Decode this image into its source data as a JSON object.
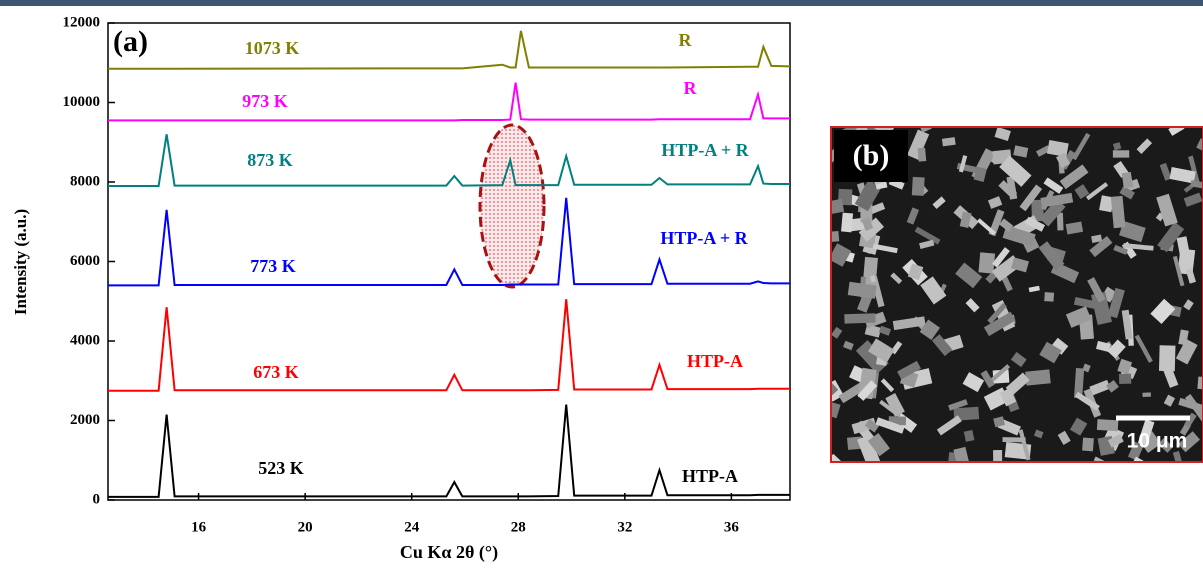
{
  "chart_data": {
    "type": "line",
    "panel_label": "(a)",
    "x_label": "Cu Kα 2θ (°)",
    "y_label": "Intensity (a.u.)",
    "xlim": [
      12.6,
      38.2
    ],
    "ylim": [
      0,
      12000
    ],
    "xticks": [
      16,
      20,
      24,
      28,
      32,
      36
    ],
    "yticks": [
      0,
      2000,
      4000,
      6000,
      8000,
      10000,
      12000
    ],
    "x": [
      12.6,
      14.5,
      14.8,
      15.1,
      25.3,
      25.6,
      25.9,
      27.4,
      27.7,
      27.9,
      28.1,
      28.4,
      29.5,
      29.8,
      30.1,
      33.0,
      33.3,
      33.6,
      36.7,
      37.0,
      37.2,
      37.5,
      38.2
    ],
    "series": [
      {
        "name": "523 K",
        "phase": "HTP-A",
        "color": "#000000",
        "values": [
          80,
          80,
          2150,
          90,
          90,
          450,
          90,
          90,
          90,
          90,
          90,
          90,
          100,
          2400,
          110,
          110,
          750,
          120,
          120,
          130,
          130,
          130,
          130
        ]
      },
      {
        "name": "673 K",
        "phase": "HTP-A",
        "color": "#ff0000",
        "values": [
          2750,
          2750,
          4850,
          2760,
          2760,
          3150,
          2760,
          2760,
          2760,
          2760,
          2760,
          2760,
          2770,
          5050,
          2780,
          2780,
          3400,
          2790,
          2790,
          2800,
          2800,
          2800,
          2800
        ]
      },
      {
        "name": "773 K",
        "phase": "HTP-A + R",
        "color": "#0000ff",
        "values": [
          5400,
          5400,
          7300,
          5410,
          5410,
          5800,
          5410,
          5410,
          5420,
          5420,
          5420,
          5420,
          5420,
          7600,
          5430,
          5430,
          6050,
          5440,
          5440,
          5500,
          5460,
          5450,
          5450
        ]
      },
      {
        "name": "873 K",
        "phase": "HTP-A + R",
        "color": "#008080",
        "values": [
          7900,
          7900,
          9200,
          7910,
          7910,
          8150,
          7910,
          7920,
          8550,
          7920,
          7920,
          7920,
          7920,
          8650,
          7930,
          7930,
          8100,
          7940,
          7940,
          8400,
          7960,
          7950,
          7950
        ]
      },
      {
        "name": "973 K",
        "phase": "R",
        "color": "#ff00ff",
        "values": [
          9550,
          9550,
          9550,
          9550,
          9550,
          9550,
          9560,
          9560,
          9570,
          10500,
          9580,
          9570,
          9570,
          9570,
          9570,
          9570,
          9580,
          9580,
          9580,
          10200,
          9600,
          9600,
          9600
        ]
      },
      {
        "name": "1073 K",
        "phase": "R",
        "color": "#808000",
        "values": [
          10850,
          10850,
          10850,
          10850,
          10860,
          10860,
          10860,
          10950,
          10880,
          10880,
          11800,
          10880,
          10880,
          10880,
          10880,
          10880,
          10880,
          10880,
          10900,
          10900,
          11400,
          10920,
          10910
        ]
      }
    ],
    "image_panel": {
      "label": "(b)",
      "scale_bar": "10 μm"
    }
  }
}
